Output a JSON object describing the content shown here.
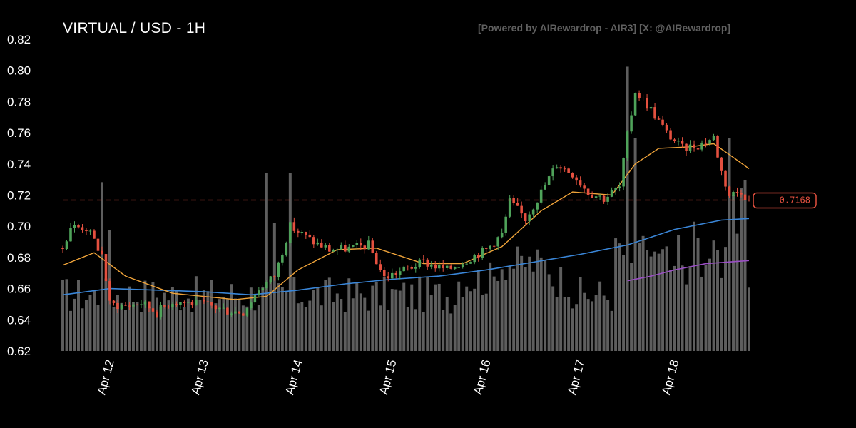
{
  "header": {
    "title": "VIRTUAL / USD - 1H",
    "credit": "[Powered by AIRewardrop - AIR3] [X: @AIRewardrop]"
  },
  "colors": {
    "background": "#000000",
    "up": "#4fa35a",
    "down": "#e4503f",
    "ma_short": "#f0a43a",
    "ma_mid": "#3a86d8",
    "ma_long": "#9a4fc4",
    "volume": "#6f6f6f",
    "price_line": "#e4503f"
  },
  "chart_data": {
    "type": "candlestick",
    "title": "VIRTUAL / USD - 1H",
    "ylim": [
      0.62,
      0.82
    ],
    "yticks": [
      0.62,
      0.64,
      0.66,
      0.68,
      0.7,
      0.72,
      0.74,
      0.76,
      0.78,
      0.8,
      0.82
    ],
    "ytick_labels": [
      "0.62",
      "0.64",
      "0.66",
      "0.68",
      "0.70",
      "0.72",
      "0.74",
      "0.76",
      "0.78",
      "0.80",
      "0.82"
    ],
    "xlim": [
      "Apr 11 12:00",
      "Apr 18 19:00"
    ],
    "xticks": [
      "Apr 12",
      "Apr 13",
      "Apr 14",
      "Apr 15",
      "Apr 16",
      "Apr 17",
      "Apr 18"
    ],
    "last_price": 0.7168,
    "last_price_label": "0.7168",
    "price_path": [
      [
        "Apr 11 12:00",
        0.686
      ],
      [
        "Apr 11 14:00",
        0.7
      ],
      [
        "Apr 11 18:00",
        0.699
      ],
      [
        "Apr 11 22:00",
        0.682
      ],
      [
        "Apr 12 00:00",
        0.65
      ],
      [
        "Apr 12 04:00",
        0.649
      ],
      [
        "Apr 12 08:00",
        0.651
      ],
      [
        "Apr 12 12:00",
        0.645
      ],
      [
        "Apr 12 16:00",
        0.652
      ],
      [
        "Apr 13 00:00",
        0.65
      ],
      [
        "Apr 13 06:00",
        0.646
      ],
      [
        "Apr 13 10:00",
        0.645
      ],
      [
        "Apr 13 14:00",
        0.66
      ],
      [
        "Apr 13 18:00",
        0.668
      ],
      [
        "Apr 13 22:00",
        0.7
      ],
      [
        "Apr 14 04:00",
        0.69
      ],
      [
        "Apr 14 08:00",
        0.685
      ],
      [
        "Apr 14 14:00",
        0.686
      ],
      [
        "Apr 14 18:00",
        0.688
      ],
      [
        "Apr 14 22:00",
        0.667
      ],
      [
        "Apr 15 04:00",
        0.673
      ],
      [
        "Apr 15 08:00",
        0.677
      ],
      [
        "Apr 15 14:00",
        0.672
      ],
      [
        "Apr 15 20:00",
        0.68
      ],
      [
        "Apr 16 00:00",
        0.685
      ],
      [
        "Apr 16 04:00",
        0.695
      ],
      [
        "Apr 16 06:00",
        0.716
      ],
      [
        "Apr 16 10:00",
        0.705
      ],
      [
        "Apr 16 14:00",
        0.722
      ],
      [
        "Apr 16 18:00",
        0.74
      ],
      [
        "Apr 16 22:00",
        0.734
      ],
      [
        "Apr 17 02:00",
        0.722
      ],
      [
        "Apr 17 06:00",
        0.718
      ],
      [
        "Apr 17 10:00",
        0.725
      ],
      [
        "Apr 17 12:00",
        0.758
      ],
      [
        "Apr 17 14:00",
        0.787
      ],
      [
        "Apr 17 18:00",
        0.775
      ],
      [
        "Apr 17 22:00",
        0.76
      ],
      [
        "Apr 18 02:00",
        0.75
      ],
      [
        "Apr 18 06:00",
        0.752
      ],
      [
        "Apr 18 10:00",
        0.757
      ],
      [
        "Apr 18 12:00",
        0.735
      ],
      [
        "Apr 18 14:00",
        0.72
      ],
      [
        "Apr 18 17:00",
        0.723
      ],
      [
        "Apr 18 19:00",
        0.7168
      ]
    ],
    "ma_short": [
      [
        "Apr 11 12:00",
        0.675
      ],
      [
        "Apr 11 20:00",
        0.683
      ],
      [
        "Apr 12 04:00",
        0.668
      ],
      [
        "Apr 12 16:00",
        0.657
      ],
      [
        "Apr 13 08:00",
        0.653
      ],
      [
        "Apr 13 16:00",
        0.655
      ],
      [
        "Apr 14 00:00",
        0.672
      ],
      [
        "Apr 14 10:00",
        0.685
      ],
      [
        "Apr 14 20:00",
        0.686
      ],
      [
        "Apr 15 08:00",
        0.676
      ],
      [
        "Apr 15 18:00",
        0.676
      ],
      [
        "Apr 16 04:00",
        0.687
      ],
      [
        "Apr 16 14:00",
        0.71
      ],
      [
        "Apr 16 22:00",
        0.722
      ],
      [
        "Apr 17 08:00",
        0.72
      ],
      [
        "Apr 17 14:00",
        0.74
      ],
      [
        "Apr 17 20:00",
        0.75
      ],
      [
        "Apr 18 04:00",
        0.751
      ],
      [
        "Apr 18 10:00",
        0.753
      ],
      [
        "Apr 18 14:00",
        0.746
      ],
      [
        "Apr 18 19:00",
        0.737
      ]
    ],
    "ma_mid": [
      [
        "Apr 11 12:00",
        0.656
      ],
      [
        "Apr 12 00:00",
        0.66
      ],
      [
        "Apr 13 00:00",
        0.658
      ],
      [
        "Apr 13 12:00",
        0.656
      ],
      [
        "Apr 14 00:00",
        0.659
      ],
      [
        "Apr 14 12:00",
        0.663
      ],
      [
        "Apr 15 00:00",
        0.666
      ],
      [
        "Apr 15 12:00",
        0.668
      ],
      [
        "Apr 16 00:00",
        0.672
      ],
      [
        "Apr 16 12:00",
        0.677
      ],
      [
        "Apr 17 00:00",
        0.682
      ],
      [
        "Apr 17 12:00",
        0.688
      ],
      [
        "Apr 18 00:00",
        0.698
      ],
      [
        "Apr 18 12:00",
        0.704
      ],
      [
        "Apr 18 19:00",
        0.705
      ]
    ],
    "ma_long": [
      [
        "Apr 17 12:00",
        0.665
      ],
      [
        "Apr 17 18:00",
        0.668
      ],
      [
        "Apr 18 00:00",
        0.672
      ],
      [
        "Apr 18 08:00",
        0.676
      ],
      [
        "Apr 18 19:00",
        0.678
      ]
    ],
    "volume_spikes": [
      [
        "Apr 11 22:00",
        0.95
      ],
      [
        "Apr 12 00:00",
        0.68
      ],
      [
        "Apr 13 16:00",
        1.0
      ],
      [
        "Apr 13 22:00",
        1.0
      ],
      [
        "Apr 13 18:00",
        0.72
      ],
      [
        "Apr 17 12:00",
        1.6
      ],
      [
        "Apr 17 14:00",
        1.2
      ],
      [
        "Apr 18 14:00",
        1.2
      ],
      [
        "Apr 18 16:00",
        0.66
      ]
    ]
  }
}
